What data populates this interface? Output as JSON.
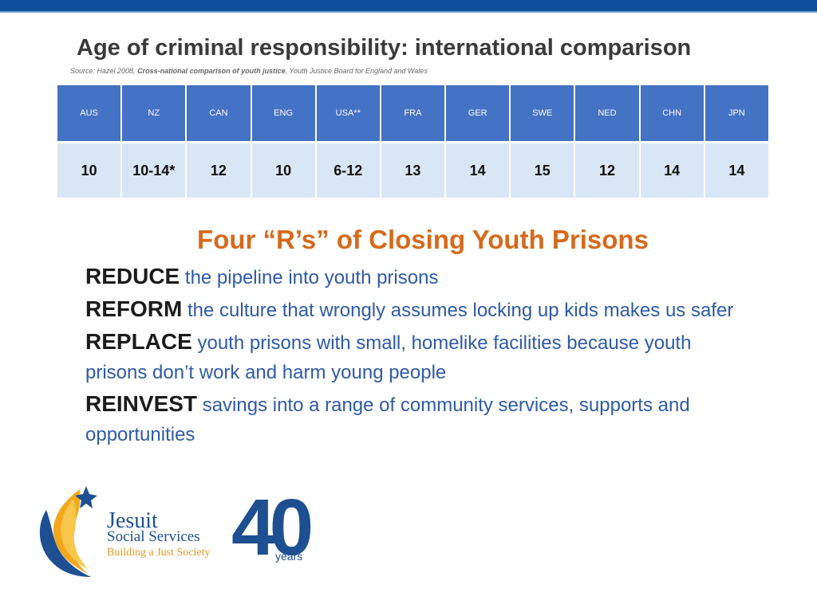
{
  "title": "Age of criminal responsibility: international comparison",
  "source": {
    "prefix": "Source: Hazel 2008, ",
    "work": "Cross-national comparison of youth justice",
    "suffix": ", Youth Justice Board for England and Wales"
  },
  "table": {
    "headers": [
      "AUS",
      "NZ",
      "CAN",
      "ENG",
      "USA**",
      "FRA",
      "GER",
      "SWE",
      "NED",
      "CHN",
      "JPN"
    ],
    "values": [
      "10",
      "10-14*",
      "12",
      "10",
      "6-12",
      "13",
      "14",
      "15",
      "12",
      "14",
      "14"
    ]
  },
  "four_rs": {
    "title": "Four “R’s” of Closing Youth Prisons",
    "items": [
      {
        "keyword": "REDUCE",
        "text": " the pipeline into youth prisons"
      },
      {
        "keyword": "REFORM",
        "text": " the culture that wrongly assumes locking up kids makes us safer"
      },
      {
        "keyword": "REPLACE",
        "text": " youth prisons with small, homelike facilities because youth prisons don’t work and harm young people"
      },
      {
        "keyword": "REINVEST",
        "text": " savings into a range of community services, supports and opportunities"
      }
    ]
  },
  "logo": {
    "name": "Jesuit",
    "sub": "Social Services",
    "tagline": "Building a Just Society",
    "anniversary": "40",
    "anniversary_unit": "years"
  },
  "colors": {
    "header_bar": "#0d4f9a",
    "table_header": "#4472c4",
    "table_cell": "#d9e6f5",
    "accent_orange": "#d56a1b",
    "body_blue": "#2e5aa7"
  }
}
